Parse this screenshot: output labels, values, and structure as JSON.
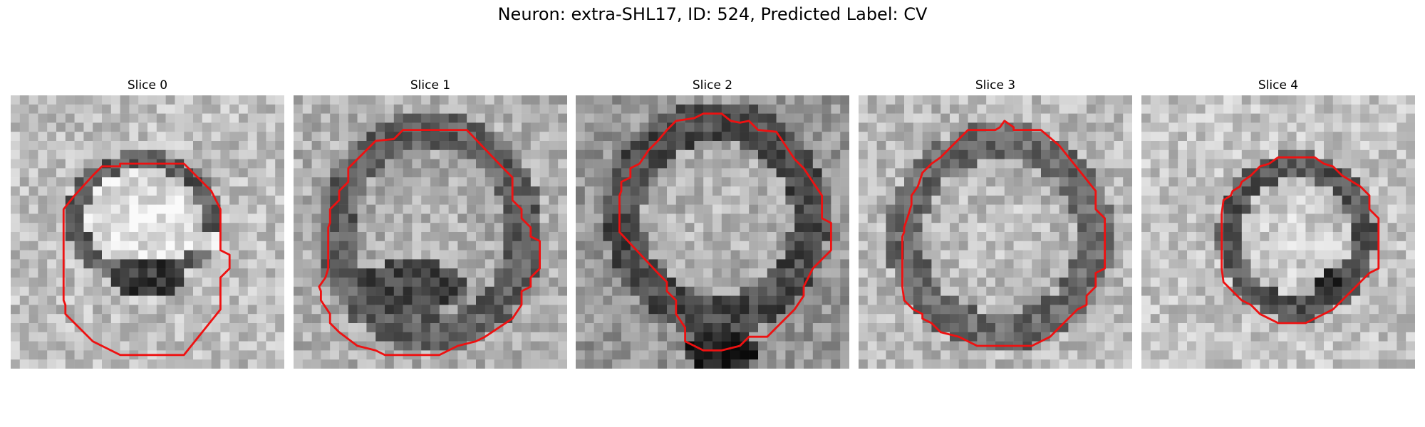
{
  "figure": {
    "title": "Neuron: extra-SHL17, ID: 524, Predicted Label: CV",
    "contour_color": "#ee1111"
  },
  "slices": [
    {
      "title": "Slice 0",
      "image": "grayscale-microscopy-slice"
    },
    {
      "title": "Slice 1",
      "image": "grayscale-microscopy-slice"
    },
    {
      "title": "Slice 2",
      "image": "grayscale-microscopy-slice"
    },
    {
      "title": "Slice 3",
      "image": "grayscale-microscopy-slice"
    },
    {
      "title": "Slice 4",
      "image": "grayscale-microscopy-slice"
    }
  ]
}
